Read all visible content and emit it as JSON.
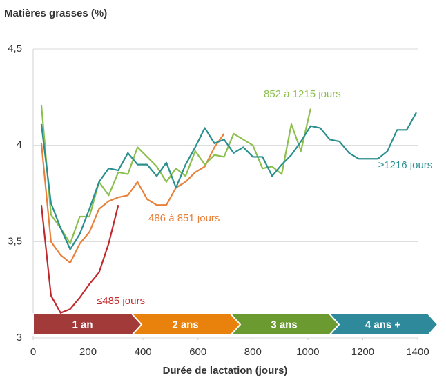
{
  "chart_data": {
    "type": "line",
    "title": "Matières grasses (%)",
    "x_label": "Durée de lactation (jours)",
    "x": [
      30,
      65,
      100,
      135,
      170,
      205,
      240,
      275,
      310,
      345,
      380,
      415,
      450,
      485,
      520,
      555,
      590,
      625,
      660,
      695,
      730,
      765,
      800,
      835,
      870,
      905,
      940,
      975,
      1010,
      1045,
      1080,
      1115,
      1150,
      1185,
      1220,
      1255,
      1290,
      1325,
      1360,
      1395
    ],
    "series": [
      {
        "name": "≤485 jours",
        "color": "#c0282b",
        "values": [
          3.69,
          3.22,
          3.13,
          3.15,
          3.21,
          3.28,
          3.34,
          3.49,
          3.69,
          null,
          null,
          null,
          null,
          null,
          null,
          null,
          null,
          null,
          null,
          null,
          null,
          null,
          null,
          null,
          null,
          null,
          null,
          null,
          null,
          null,
          null,
          null,
          null,
          null,
          null,
          null,
          null,
          null,
          null,
          null
        ]
      },
      {
        "name": "486 à 851 jours",
        "color": "#e8803a",
        "values": [
          4.01,
          3.5,
          3.43,
          3.39,
          3.49,
          3.55,
          3.67,
          3.71,
          3.73,
          3.74,
          3.81,
          3.72,
          3.69,
          3.69,
          3.78,
          3.81,
          3.86,
          3.89,
          3.99,
          4.06,
          null,
          null,
          null,
          null,
          null,
          null,
          null,
          null,
          null,
          null,
          null,
          null,
          null,
          null,
          null,
          null,
          null,
          null,
          null,
          null
        ]
      },
      {
        "name": "852 à 1215 jours",
        "color": "#8cbf4e",
        "values": [
          4.21,
          3.64,
          3.57,
          3.49,
          3.63,
          3.63,
          3.81,
          3.74,
          3.86,
          3.85,
          3.99,
          3.94,
          3.89,
          3.81,
          3.88,
          3.84,
          3.97,
          3.9,
          3.95,
          3.94,
          4.06,
          4.03,
          4.0,
          3.88,
          3.89,
          3.85,
          4.11,
          3.97,
          4.19,
          null,
          null,
          null,
          null,
          null,
          null,
          null,
          null,
          null,
          null,
          null
        ]
      },
      {
        "name": "≥1216 jours",
        "color": "#2a8f8f",
        "values": [
          4.11,
          3.7,
          3.57,
          3.46,
          3.54,
          3.67,
          3.81,
          3.88,
          3.87,
          3.96,
          3.9,
          3.9,
          3.84,
          3.91,
          3.78,
          3.9,
          3.99,
          4.09,
          4.01,
          4.03,
          3.96,
          3.99,
          3.94,
          3.94,
          3.84,
          3.9,
          3.95,
          4.02,
          4.1,
          4.09,
          4.03,
          4.02,
          3.96,
          3.93,
          3.93,
          3.93,
          3.97,
          4.08,
          4.08,
          4.17
        ]
      }
    ],
    "periods": [
      {
        "label": "1 an",
        "color": "#a33a3a"
      },
      {
        "label": "2 ans",
        "color": "#e8820c"
      },
      {
        "label": "3 ans",
        "color": "#6a9a30"
      },
      {
        "label": "4 ans +",
        "color": "#2e8a9a"
      }
    ],
    "xlim": [
      0,
      1400
    ],
    "xticks": [
      0,
      200,
      400,
      600,
      800,
      1000,
      1200,
      1400
    ],
    "ylim": [
      3,
      4.5
    ],
    "yticks": [
      3,
      {
        "value": 3.5,
        "label": "3,5"
      },
      4,
      {
        "value": 4.5,
        "label": "4,5"
      }
    ],
    "grid": true
  }
}
